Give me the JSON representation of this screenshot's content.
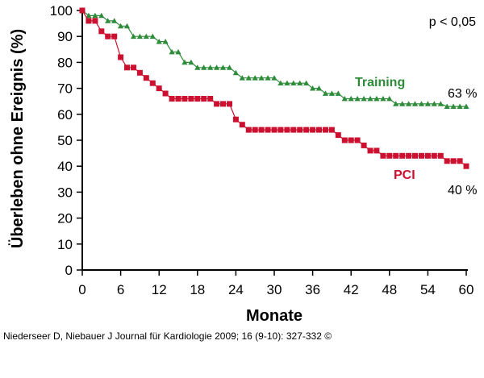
{
  "chart_data": {
    "type": "line",
    "xlabel": "Monate",
    "ylabel": "Überleben ohne Ereignis (%)",
    "xlim": [
      0,
      60
    ],
    "ylim": [
      0,
      100
    ],
    "x_ticks": [
      0,
      6,
      12,
      18,
      24,
      30,
      36,
      42,
      48,
      54,
      60
    ],
    "y_ticks": [
      0,
      10,
      20,
      30,
      40,
      50,
      60,
      70,
      80,
      90,
      100
    ],
    "grid": false,
    "legend": "none",
    "annotation_pvalue": "p < 0,05",
    "series": [
      {
        "name": "Training",
        "color": "#2e8b3a",
        "marker": "triangle",
        "end_label": "63 %",
        "points": [
          [
            0,
            100
          ],
          [
            1,
            98
          ],
          [
            2,
            98
          ],
          [
            3,
            98
          ],
          [
            4,
            96
          ],
          [
            5,
            96
          ],
          [
            6,
            94
          ],
          [
            7,
            94
          ],
          [
            8,
            90
          ],
          [
            9,
            90
          ],
          [
            10,
            90
          ],
          [
            11,
            90
          ],
          [
            12,
            88
          ],
          [
            13,
            88
          ],
          [
            14,
            84
          ],
          [
            15,
            84
          ],
          [
            16,
            80
          ],
          [
            17,
            80
          ],
          [
            18,
            78
          ],
          [
            19,
            78
          ],
          [
            20,
            78
          ],
          [
            21,
            78
          ],
          [
            22,
            78
          ],
          [
            23,
            78
          ],
          [
            24,
            76
          ],
          [
            25,
            74
          ],
          [
            26,
            74
          ],
          [
            27,
            74
          ],
          [
            28,
            74
          ],
          [
            29,
            74
          ],
          [
            30,
            74
          ],
          [
            31,
            72
          ],
          [
            32,
            72
          ],
          [
            33,
            72
          ],
          [
            34,
            72
          ],
          [
            35,
            72
          ],
          [
            36,
            70
          ],
          [
            37,
            70
          ],
          [
            38,
            68
          ],
          [
            39,
            68
          ],
          [
            40,
            68
          ],
          [
            41,
            66
          ],
          [
            42,
            66
          ],
          [
            43,
            66
          ],
          [
            44,
            66
          ],
          [
            45,
            66
          ],
          [
            46,
            66
          ],
          [
            47,
            66
          ],
          [
            48,
            66
          ],
          [
            49,
            64
          ],
          [
            50,
            64
          ],
          [
            51,
            64
          ],
          [
            52,
            64
          ],
          [
            53,
            64
          ],
          [
            54,
            64
          ],
          [
            55,
            64
          ],
          [
            56,
            64
          ],
          [
            57,
            63
          ],
          [
            58,
            63
          ],
          [
            59,
            63
          ],
          [
            60,
            63
          ]
        ]
      },
      {
        "name": "PCI",
        "color": "#cc1030",
        "marker": "square",
        "end_label": "40 %",
        "points": [
          [
            0,
            100
          ],
          [
            1,
            96
          ],
          [
            2,
            96
          ],
          [
            3,
            92
          ],
          [
            4,
            90
          ],
          [
            5,
            90
          ],
          [
            6,
            82
          ],
          [
            7,
            78
          ],
          [
            8,
            78
          ],
          [
            9,
            76
          ],
          [
            10,
            74
          ],
          [
            11,
            72
          ],
          [
            12,
            70
          ],
          [
            13,
            68
          ],
          [
            14,
            66
          ],
          [
            15,
            66
          ],
          [
            16,
            66
          ],
          [
            17,
            66
          ],
          [
            18,
            66
          ],
          [
            19,
            66
          ],
          [
            20,
            66
          ],
          [
            21,
            64
          ],
          [
            22,
            64
          ],
          [
            23,
            64
          ],
          [
            24,
            58
          ],
          [
            25,
            56
          ],
          [
            26,
            54
          ],
          [
            27,
            54
          ],
          [
            28,
            54
          ],
          [
            29,
            54
          ],
          [
            30,
            54
          ],
          [
            31,
            54
          ],
          [
            32,
            54
          ],
          [
            33,
            54
          ],
          [
            34,
            54
          ],
          [
            35,
            54
          ],
          [
            36,
            54
          ],
          [
            37,
            54
          ],
          [
            38,
            54
          ],
          [
            39,
            54
          ],
          [
            40,
            52
          ],
          [
            41,
            50
          ],
          [
            42,
            50
          ],
          [
            43,
            50
          ],
          [
            44,
            48
          ],
          [
            45,
            46
          ],
          [
            46,
            46
          ],
          [
            47,
            44
          ],
          [
            48,
            44
          ],
          [
            49,
            44
          ],
          [
            50,
            44
          ],
          [
            51,
            44
          ],
          [
            52,
            44
          ],
          [
            53,
            44
          ],
          [
            54,
            44
          ],
          [
            55,
            44
          ],
          [
            56,
            44
          ],
          [
            57,
            42
          ],
          [
            58,
            42
          ],
          [
            59,
            42
          ],
          [
            60,
            40
          ]
        ]
      }
    ]
  },
  "citation": "Niederseer D, Niebauer J Journal für Kardiologie 2009; 16 (9-10): 327-332 ©"
}
